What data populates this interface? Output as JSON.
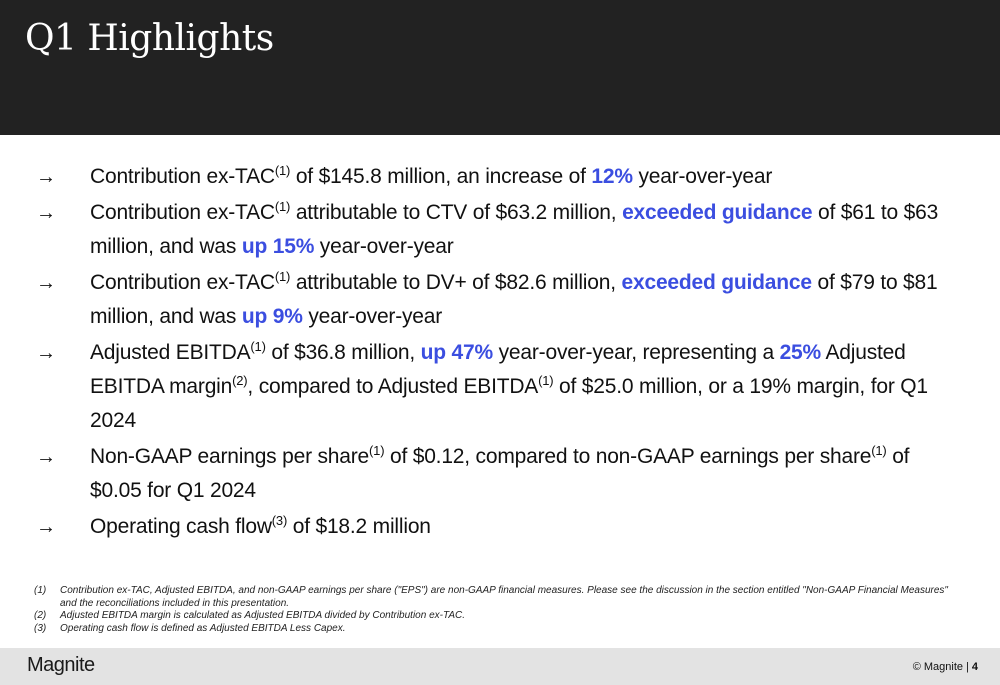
{
  "header": {
    "title": "Q1 Highlights"
  },
  "icons": {
    "bullet": "right-arrow-icon",
    "arrow_glyph": "→"
  },
  "bullets": [
    {
      "segments": [
        {
          "t": "Contribution ex-TAC"
        },
        {
          "sup": "(1)"
        },
        {
          "t": " of $145.8 million, an increase of "
        },
        {
          "hl": "12%"
        },
        {
          "t": " year-over-year"
        }
      ]
    },
    {
      "segments": [
        {
          "t": "Contribution ex-TAC"
        },
        {
          "sup": "(1)"
        },
        {
          "t": " attributable to CTV of $63.2 million, "
        },
        {
          "hl": "exceeded guidance"
        },
        {
          "t": " of $61 to $63 million, and was "
        },
        {
          "hl": "up 15%"
        },
        {
          "t": " year-over-year"
        }
      ]
    },
    {
      "segments": [
        {
          "t": "Contribution ex-TAC"
        },
        {
          "sup": "(1)"
        },
        {
          "t": " attributable to DV+ of $82.6 million, "
        },
        {
          "hl": "exceeded guidance"
        },
        {
          "t": " of $79 to $81 million, and was "
        },
        {
          "hl": "up 9%"
        },
        {
          "t": " year-over-year"
        }
      ]
    },
    {
      "segments": [
        {
          "t": "Adjusted EBITDA"
        },
        {
          "sup": "(1)"
        },
        {
          "t": " of $36.8 million, "
        },
        {
          "hl": "up 47%"
        },
        {
          "t": " year-over-year, representing a "
        },
        {
          "hl": "25%"
        },
        {
          "t": " Adjusted EBITDA margin"
        },
        {
          "sup": "(2)"
        },
        {
          "t": ", compared to Adjusted EBITDA"
        },
        {
          "sup": "(1)"
        },
        {
          "t": " of $25.0 million, or a 19% margin, for Q1 2024"
        }
      ]
    },
    {
      "segments": [
        {
          "t": "Non-GAAP earnings per share"
        },
        {
          "sup": "(1)"
        },
        {
          "t": " of $0.12, compared to non-GAAP earnings per share"
        },
        {
          "sup": "(1)"
        },
        {
          "t": " of $0.05 for Q1 2024"
        }
      ]
    },
    {
      "segments": [
        {
          "t": "Operating cash flow"
        },
        {
          "sup": "(3)"
        },
        {
          "t": " of $18.2 million"
        }
      ]
    }
  ],
  "footnotes": [
    {
      "num": "(1)",
      "text": "Contribution ex-TAC, Adjusted EBITDA, and non-GAAP earnings per share (\"EPS\") are non-GAAP financial measures. Please see the discussion in the section entitled \"Non-GAAP Financial Measures\" and the reconciliations included in this presentation."
    },
    {
      "num": "(2)",
      "text": "Adjusted EBITDA margin is calculated as Adjusted EBITDA divided by Contribution ex-TAC."
    },
    {
      "num": "(3)",
      "text": "Operating cash flow is defined as Adjusted EBITDA Less Capex."
    }
  ],
  "footer": {
    "logo": "Magnite",
    "copyright": "© Magnite",
    "separator": "|",
    "page": "4"
  },
  "colors": {
    "header_bg": "#222222",
    "highlight": "#3b4ee0",
    "footer_bg": "#e3e3e3"
  }
}
